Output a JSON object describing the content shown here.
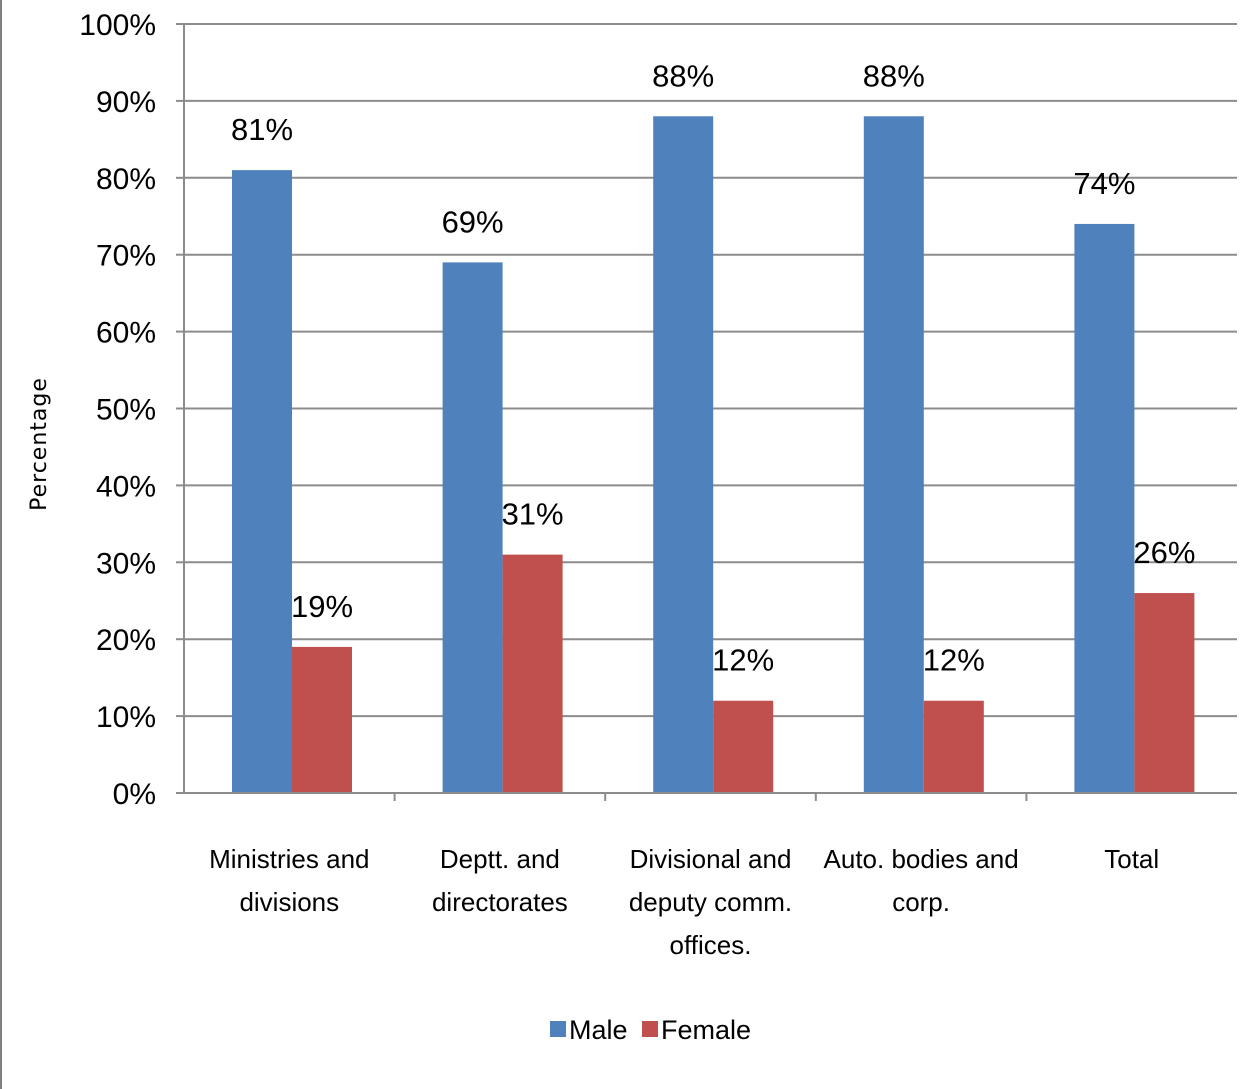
{
  "chart_data": {
    "type": "bar",
    "title": "",
    "xlabel": "",
    "ylabel": "Percentage",
    "ylim": [
      0,
      100
    ],
    "yticks": [
      "0%",
      "10%",
      "20%",
      "30%",
      "40%",
      "50%",
      "60%",
      "70%",
      "80%",
      "90%",
      "100%"
    ],
    "grid": true,
    "legend_position": "bottom",
    "categories": [
      [
        "Ministries and",
        "divisions"
      ],
      [
        "Deptt. and",
        "directorates"
      ],
      [
        "Divisional and",
        "deputy comm.",
        "offices."
      ],
      [
        "Auto. bodies and",
        "corp."
      ],
      [
        "Total"
      ]
    ],
    "series": [
      {
        "name": "Male",
        "color": "#4f81bd",
        "values": [
          81,
          69,
          88,
          88,
          74
        ],
        "labels": [
          "81%",
          "69%",
          "88%",
          "88%",
          "74%"
        ]
      },
      {
        "name": "Female",
        "color": "#c0504d",
        "values": [
          19,
          31,
          12,
          12,
          26
        ],
        "labels": [
          "19%",
          "31%",
          "12%",
          "12%",
          "26%"
        ]
      }
    ]
  }
}
